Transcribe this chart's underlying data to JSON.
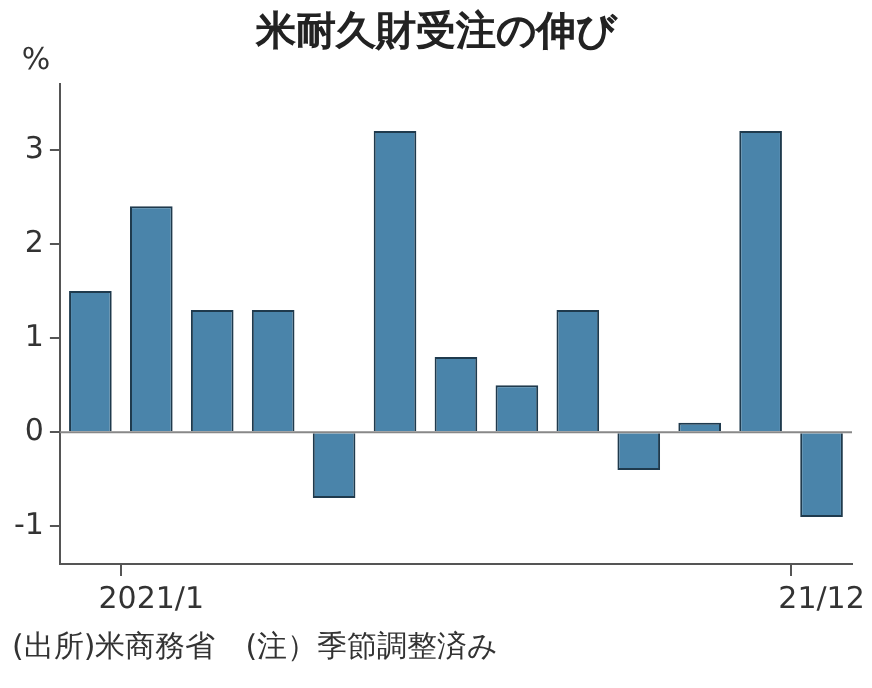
{
  "chart_data": {
    "type": "bar",
    "title": "米耐久財受注の伸び",
    "ylabel": "%",
    "categories": [
      null,
      "2021/1",
      null,
      null,
      null,
      null,
      null,
      null,
      null,
      null,
      null,
      null,
      "21/12"
    ],
    "values": [
      1.5,
      2.4,
      1.3,
      1.3,
      -0.7,
      3.2,
      0.8,
      0.5,
      1.3,
      -0.4,
      0.1,
      3.2,
      -0.9
    ],
    "color": "#4a84aa",
    "ylim": [
      -1.4,
      3.7
    ],
    "yticks": [
      -1,
      0,
      1,
      2,
      3
    ],
    "grid": false,
    "legend": false,
    "ref_lines": [
      {
        "axis": "y",
        "value": 0,
        "color": "#888888"
      }
    ],
    "annotations": [
      "(出所)米商務省　(注）季節調整済み"
    ]
  }
}
